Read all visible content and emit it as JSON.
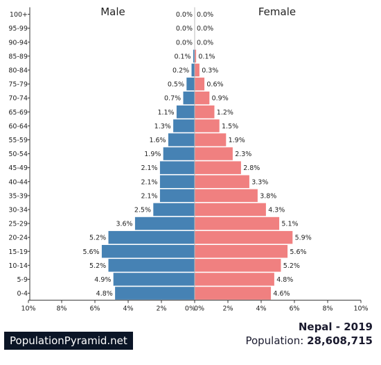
{
  "chart_data": {
    "type": "bar",
    "orientation": "horizontal",
    "layout": "population-pyramid",
    "categories": [
      "100+",
      "95-99",
      "90-94",
      "85-89",
      "80-84",
      "75-79",
      "70-74",
      "65-69",
      "60-64",
      "55-59",
      "50-54",
      "45-49",
      "40-44",
      "35-39",
      "30-34",
      "25-29",
      "20-24",
      "15-19",
      "10-14",
      "5-9",
      "0-4"
    ],
    "series": [
      {
        "name": "Male",
        "color": "#4682b4",
        "values": [
          0.0,
          0.0,
          0.0,
          0.1,
          0.2,
          0.5,
          0.7,
          1.1,
          1.3,
          1.6,
          1.9,
          2.1,
          2.1,
          2.1,
          2.5,
          3.6,
          5.2,
          5.6,
          5.2,
          4.9,
          4.8
        ]
      },
      {
        "name": "Female",
        "color": "#f08080",
        "values": [
          0.0,
          0.0,
          0.0,
          0.1,
          0.3,
          0.6,
          0.9,
          1.2,
          1.5,
          1.9,
          2.3,
          2.8,
          3.3,
          3.8,
          4.3,
          5.1,
          5.9,
          5.6,
          5.2,
          4.8,
          4.6
        ]
      }
    ],
    "x_ticks": [
      "10%",
      "8%",
      "6%",
      "4%",
      "2%",
      "0%",
      "0%",
      "2%",
      "4%",
      "6%",
      "8%",
      "10%"
    ],
    "xlim": [
      -10,
      10
    ],
    "value_unit": "%",
    "grid": false
  },
  "footer": {
    "brand": "PopulationPyramid.net",
    "country_year": "Nepal - 2019",
    "population_label": "Population:",
    "population_value": "28,608,715"
  }
}
